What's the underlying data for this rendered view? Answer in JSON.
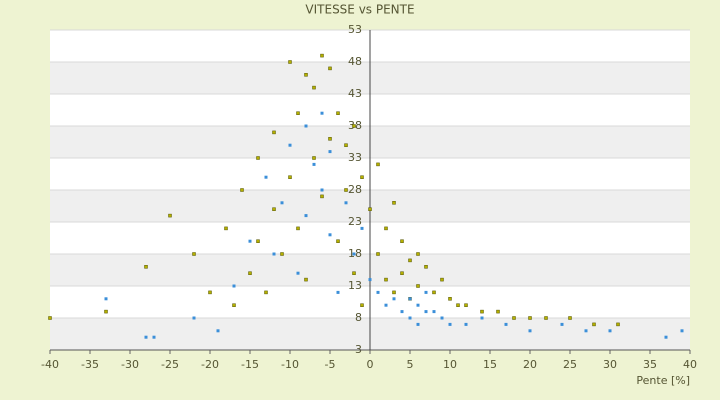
{
  "chart_data": {
    "type": "scatter",
    "title": "VITESSE vs PENTE",
    "x_label": "Pente [%]",
    "xlim": [
      -40,
      40
    ],
    "xticks": [
      -40,
      -35,
      -30,
      -25,
      -20,
      -15,
      -10,
      -5,
      0,
      5,
      10,
      15,
      20,
      25,
      30,
      35,
      40
    ],
    "ylim": [
      3,
      53
    ],
    "yticks": [
      3,
      8,
      13,
      18,
      23,
      28,
      33,
      38,
      43,
      48,
      53
    ],
    "grid": true,
    "series": [
      {
        "color": "#b5b000",
        "x": [
          -40,
          -33,
          -28,
          -25,
          -22,
          -20,
          -18,
          -17,
          -16,
          -15,
          -14,
          -14,
          -13,
          -12,
          -12,
          -11,
          -10,
          -10,
          -9,
          -9,
          -8,
          -8,
          -7,
          -7,
          -6,
          -6,
          -5,
          -5,
          -4,
          -4,
          -3,
          -3,
          -2,
          -2,
          -1,
          -1,
          0,
          1,
          1,
          2,
          2,
          3,
          3,
          4,
          4,
          5,
          5,
          6,
          6,
          7,
          8,
          9,
          10,
          11,
          12,
          14,
          16,
          18,
          20,
          22,
          25,
          28,
          31
        ],
        "values": [
          8,
          9,
          16,
          24,
          18,
          12,
          22,
          10,
          28,
          15,
          33,
          20,
          12,
          37,
          25,
          18,
          48,
          30,
          40,
          22,
          46,
          14,
          44,
          33,
          49,
          27,
          47,
          36,
          40,
          20,
          35,
          28,
          38,
          15,
          30,
          10,
          25,
          32,
          18,
          22,
          14,
          26,
          12,
          20,
          15,
          17,
          11,
          18,
          13,
          16,
          12,
          14,
          11,
          10,
          10,
          9,
          9,
          8,
          8,
          8,
          8,
          7,
          7
        ]
      },
      {
        "color": "#3b8fd9",
        "x": [
          -33,
          -28,
          -27,
          -22,
          -19,
          -17,
          -15,
          -13,
          -12,
          -11,
          -10,
          -9,
          -8,
          -8,
          -7,
          -6,
          -6,
          -5,
          -5,
          -4,
          -3,
          -2,
          -1,
          0,
          1,
          2,
          3,
          4,
          5,
          5,
          6,
          6,
          7,
          7,
          8,
          9,
          10,
          12,
          14,
          17,
          20,
          24,
          27,
          30,
          37,
          39
        ],
        "values": [
          11,
          5,
          5,
          8,
          6,
          13,
          20,
          30,
          18,
          26,
          35,
          15,
          38,
          24,
          32,
          28,
          40,
          21,
          34,
          12,
          26,
          18,
          22,
          14,
          12,
          10,
          11,
          9,
          11,
          8,
          10,
          7,
          12,
          9,
          9,
          8,
          7,
          7,
          8,
          7,
          6,
          7,
          6,
          6,
          5,
          6
        ]
      }
    ]
  }
}
